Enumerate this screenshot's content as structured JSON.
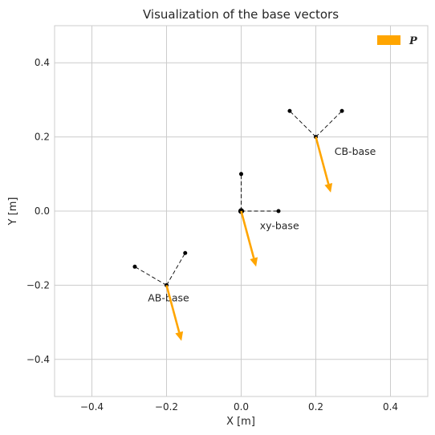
{
  "chart_data": {
    "type": "scatter",
    "title": "Visualization of the base vectors",
    "xlabel": "X [m]",
    "ylabel": "Y [m]",
    "xlim": [
      -0.5,
      0.5
    ],
    "ylim": [
      -0.5,
      0.5
    ],
    "xticks": [
      -0.4,
      -0.2,
      0.0,
      0.2,
      0.4
    ],
    "yticks": [
      -0.4,
      -0.2,
      0.0,
      0.2,
      0.4
    ],
    "xtick_labels": [
      "−0.4",
      "−0.2",
      "0.0",
      "0.2",
      "0.4"
    ],
    "ytick_labels": [
      "−0.4",
      "−0.2",
      "0.0",
      "0.2",
      "0.4"
    ],
    "grid": true,
    "legend": {
      "placement": "top-right",
      "entries": [
        {
          "label": "P",
          "color": "#FFA500",
          "marker": "arrow"
        }
      ]
    },
    "bases": [
      {
        "label": "xy-base",
        "origin": [
          0.0,
          0.0
        ],
        "axis_ends": [
          [
            0.1,
            0.0
          ],
          [
            0.0,
            0.1
          ]
        ],
        "label_pos": [
          0.05,
          -0.04
        ],
        "arrow_end": [
          0.04,
          -0.15
        ]
      },
      {
        "label": "CB-base",
        "origin": [
          0.2,
          0.2
        ],
        "axis_ends": [
          [
            0.27,
            0.27
          ],
          [
            0.13,
            0.27
          ]
        ],
        "label_pos": [
          0.25,
          0.16
        ],
        "arrow_end": [
          0.24,
          0.05
        ]
      },
      {
        "label": "AB-base",
        "origin": [
          -0.2,
          -0.2
        ],
        "axis_ends": [
          [
            -0.15,
            -0.113
          ],
          [
            -0.285,
            -0.15
          ]
        ],
        "label_pos": [
          -0.25,
          -0.235
        ],
        "arrow_end": [
          -0.16,
          -0.35
        ]
      }
    ],
    "colors": {
      "vector": "#FFA500",
      "point": "#000000",
      "grid": "#cccccc",
      "axes_edge": "#cccccc"
    }
  }
}
